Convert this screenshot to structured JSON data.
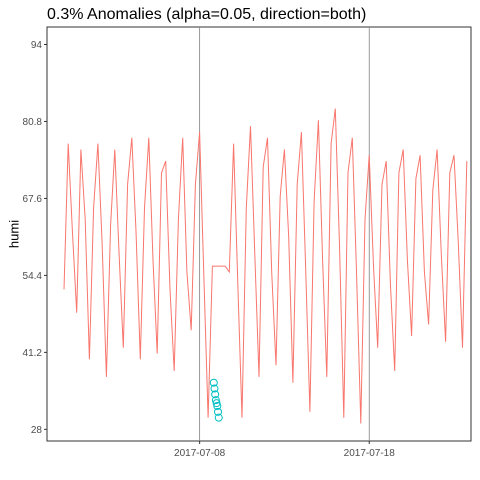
{
  "chart_data": {
    "type": "line",
    "title": "0.3% Anomalies (alpha=0.05, direction=both)",
    "xlabel": "",
    "ylabel": "humi",
    "xlim": [
      "2017-06-29",
      "2017-07-24"
    ],
    "ylim": [
      26,
      97
    ],
    "yticks": [
      28,
      41.2,
      54.4,
      67.6,
      80.8,
      94
    ],
    "ytick_labels": [
      "28",
      "41.2",
      "54.4",
      "67.6",
      "80.8",
      "94"
    ],
    "xticks": [
      "2017-07-08",
      "2017-07-18"
    ],
    "xtick_labels": [
      "2017-07-08",
      "2017-07-18"
    ],
    "grid": false,
    "vlines": [
      "2017-07-08",
      "2017-07-18"
    ],
    "series": [
      {
        "name": "",
        "kind": "line",
        "color": "#F8766D",
        "x": [
          "2017-06-30 00:00",
          "2017-06-30 06:00",
          "2017-06-30 12:00",
          "2017-06-30 18:00",
          "2017-07-01 00:00",
          "2017-07-01 06:00",
          "2017-07-01 12:00",
          "2017-07-01 18:00",
          "2017-07-02 00:00",
          "2017-07-02 06:00",
          "2017-07-02 12:00",
          "2017-07-02 18:00",
          "2017-07-03 00:00",
          "2017-07-03 06:00",
          "2017-07-03 12:00",
          "2017-07-03 18:00",
          "2017-07-04 00:00",
          "2017-07-04 06:00",
          "2017-07-04 12:00",
          "2017-07-04 18:00",
          "2017-07-05 00:00",
          "2017-07-05 06:00",
          "2017-07-05 12:00",
          "2017-07-05 18:00",
          "2017-07-06 00:00",
          "2017-07-06 06:00",
          "2017-07-06 12:00",
          "2017-07-06 18:00",
          "2017-07-07 00:00",
          "2017-07-07 06:00",
          "2017-07-07 12:00",
          "2017-07-07 18:00",
          "2017-07-08 00:00",
          "2017-07-08 06:00",
          "2017-07-08 12:00",
          "2017-07-08 18:00",
          "2017-07-09 00:00",
          "2017-07-09 06:00",
          "2017-07-09 12:00",
          "2017-07-09 18:00",
          "2017-07-10 00:00",
          "2017-07-10 06:00",
          "2017-07-10 12:00",
          "2017-07-10 18:00",
          "2017-07-11 00:00",
          "2017-07-11 06:00",
          "2017-07-11 12:00",
          "2017-07-11 18:00",
          "2017-07-12 00:00",
          "2017-07-12 06:00",
          "2017-07-12 12:00",
          "2017-07-12 18:00",
          "2017-07-13 00:00",
          "2017-07-13 06:00",
          "2017-07-13 12:00",
          "2017-07-13 18:00",
          "2017-07-14 00:00",
          "2017-07-14 06:00",
          "2017-07-14 12:00",
          "2017-07-14 18:00",
          "2017-07-15 00:00",
          "2017-07-15 06:00",
          "2017-07-15 12:00",
          "2017-07-15 18:00",
          "2017-07-16 00:00",
          "2017-07-16 06:00",
          "2017-07-16 12:00",
          "2017-07-16 18:00",
          "2017-07-17 00:00",
          "2017-07-17 06:00",
          "2017-07-17 12:00",
          "2017-07-17 18:00",
          "2017-07-18 00:00",
          "2017-07-18 06:00",
          "2017-07-18 12:00",
          "2017-07-18 18:00",
          "2017-07-19 00:00",
          "2017-07-19 06:00",
          "2017-07-19 12:00",
          "2017-07-19 18:00",
          "2017-07-20 00:00",
          "2017-07-20 06:00",
          "2017-07-20 12:00",
          "2017-07-20 18:00",
          "2017-07-21 00:00",
          "2017-07-21 06:00",
          "2017-07-21 12:00",
          "2017-07-21 18:00",
          "2017-07-22 00:00",
          "2017-07-22 06:00",
          "2017-07-22 12:00",
          "2017-07-22 18:00",
          "2017-07-23 00:00",
          "2017-07-23 06:00",
          "2017-07-23 12:00",
          "2017-07-23 18:00"
        ],
        "y": [
          52,
          77,
          62,
          48,
          76,
          64,
          40,
          66,
          77,
          60,
          37,
          63,
          76,
          58,
          42,
          70,
          78,
          62,
          40,
          66,
          78,
          57,
          41,
          72,
          74,
          52,
          38,
          64,
          78,
          55,
          45,
          70,
          79,
          54,
          30,
          56,
          56,
          56,
          56,
          55,
          77,
          53,
          30,
          66,
          80,
          58,
          37,
          73,
          78,
          55,
          39,
          68,
          76,
          61,
          36,
          70,
          79,
          56,
          31,
          67,
          81,
          57,
          37,
          77,
          83,
          59,
          30,
          72,
          78,
          55,
          29,
          64,
          75,
          56,
          42,
          70,
          74,
          53,
          38,
          72,
          76,
          57,
          44,
          71,
          75,
          55,
          46,
          69,
          76,
          58,
          43,
          72,
          75,
          60,
          42,
          74
        ]
      },
      {
        "name": "",
        "kind": "points",
        "color": "#00BFC4",
        "x": [
          "2017-07-08 20:00",
          "2017-07-08 21:00",
          "2017-07-08 22:00",
          "2017-07-08 23:00",
          "2017-07-09 00:00",
          "2017-07-09 01:00",
          "2017-07-09 02:00",
          "2017-07-09 03:00"
        ],
        "y": [
          36,
          35,
          34,
          33,
          32.5,
          32,
          31,
          30
        ]
      }
    ]
  }
}
